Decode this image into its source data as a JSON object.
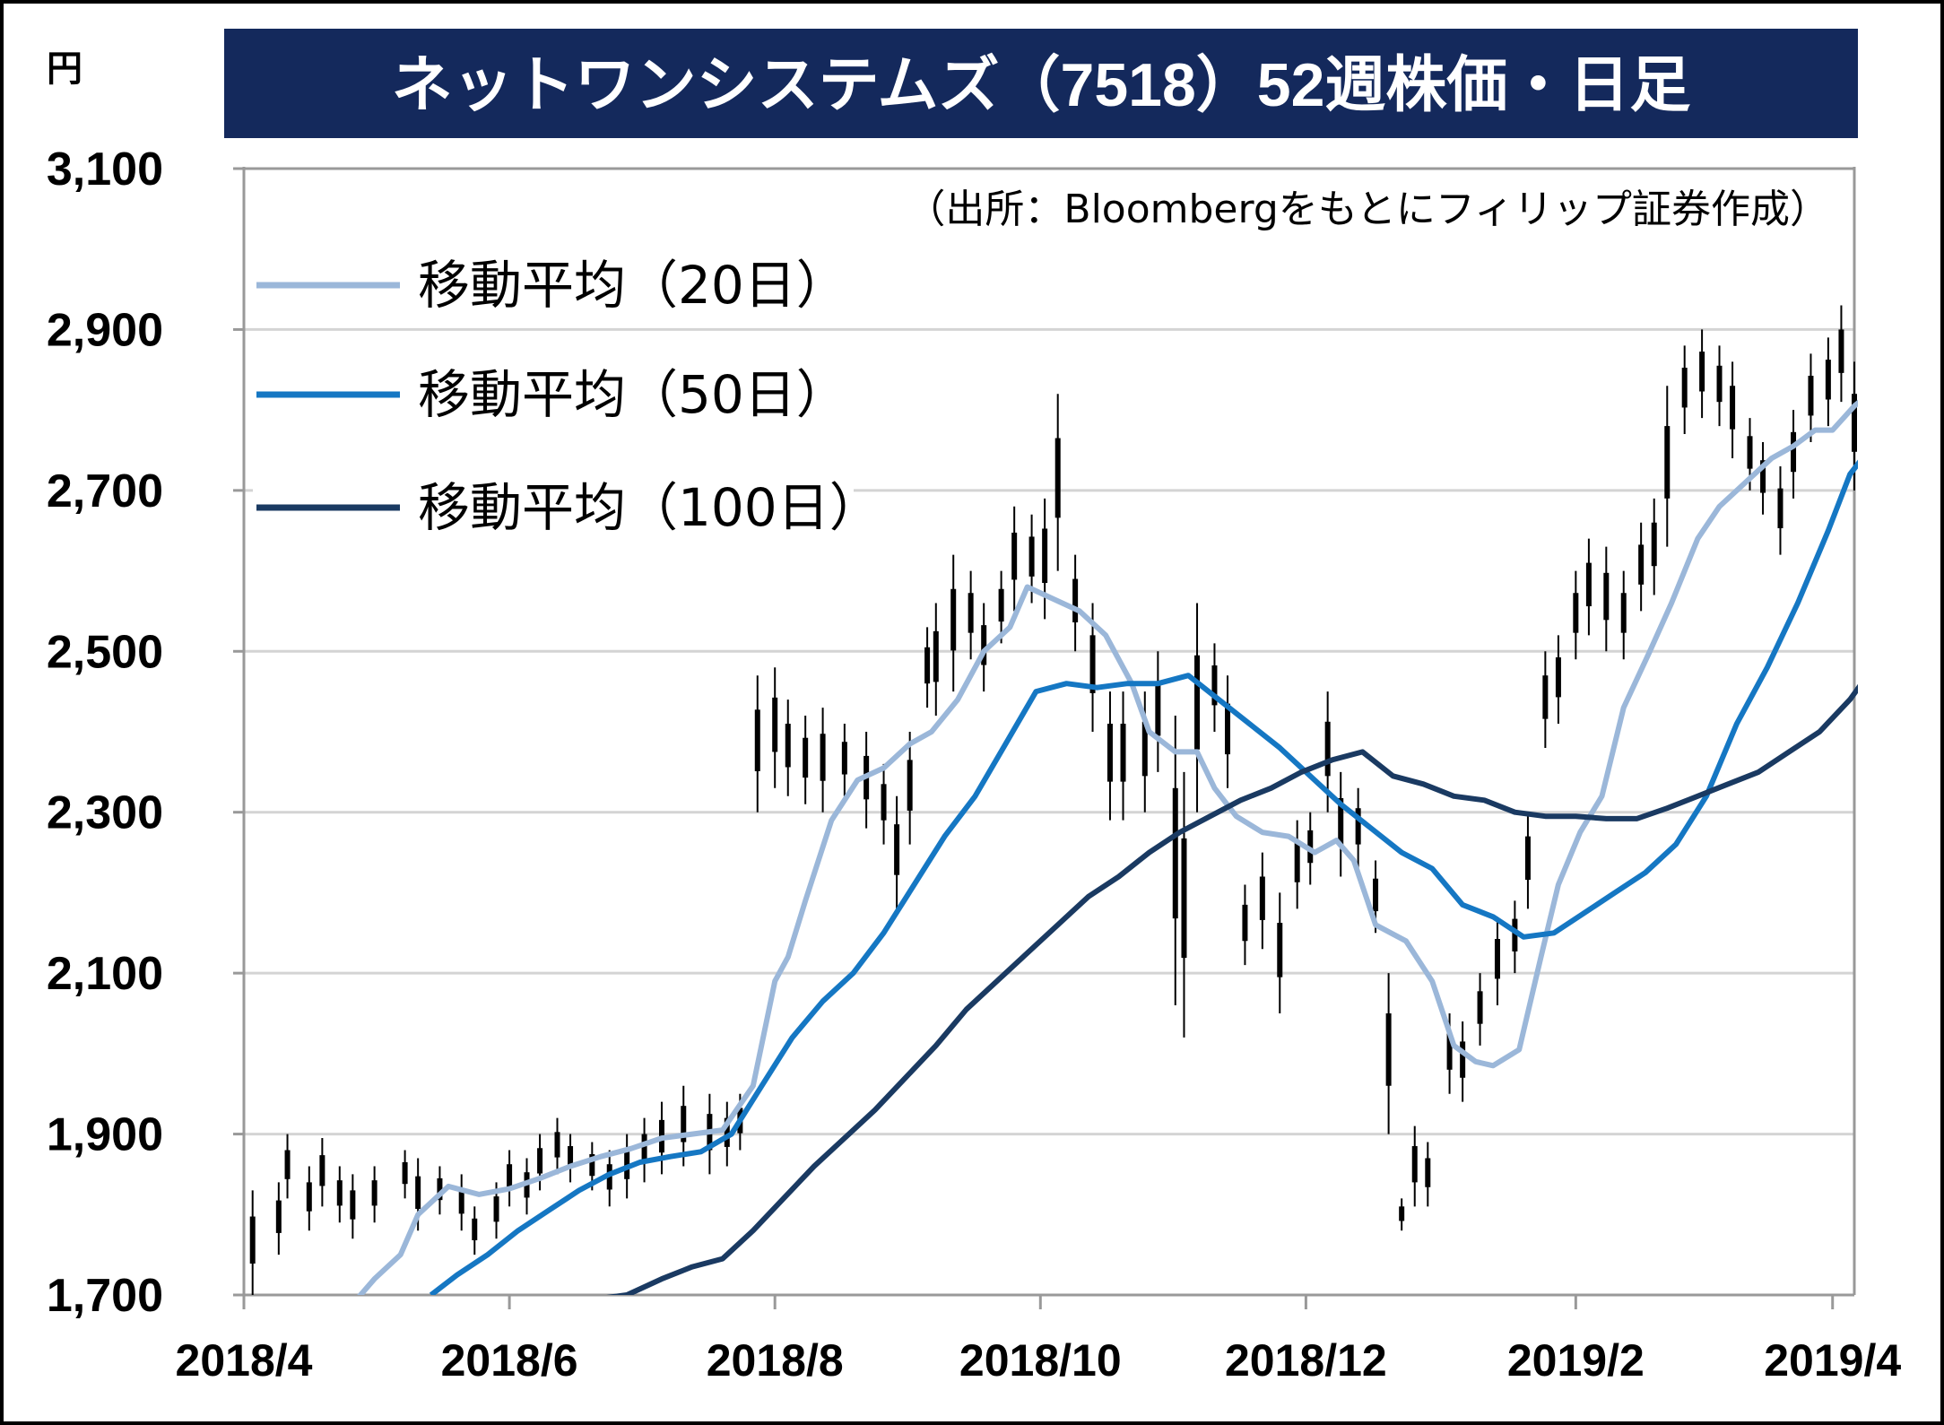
{
  "unit_label": "円",
  "title": "ネットワンシステムズ（7518）52週株価・日足",
  "source": "（出所：Bloombergをもとにフィリップ証券作成）",
  "colors": {
    "title_bg": "#14295c",
    "title_text": "#ffffff",
    "ma20": "#9bb7d9",
    "ma50": "#1577c3",
    "ma100": "#1a3a62",
    "candle": "#000000",
    "grid": "#d4d4d4"
  },
  "chart_data": {
    "type": "line",
    "title": "ネットワンシステムズ（7518）52週株価・日足",
    "ylabel": "円",
    "ylim": [
      1700,
      3100
    ],
    "yticks": [
      "1,700",
      "1,900",
      "2,100",
      "2,300",
      "2,500",
      "2,700",
      "2,900",
      "3,100"
    ],
    "ytick_values": [
      1700,
      1900,
      2100,
      2300,
      2500,
      2700,
      2900,
      3100
    ],
    "xticks": [
      "2018/4",
      "2018/6",
      "2018/8",
      "2018/10",
      "2018/12",
      "2019/2",
      "2019/4"
    ],
    "xtick_dates": [
      "2018-04-01",
      "2018-06-01",
      "2018-08-01",
      "2018-10-01",
      "2018-12-01",
      "2019-02-01",
      "2019-04-01"
    ],
    "x_range": [
      "2018-04-01",
      "2019-04-06"
    ],
    "grid": "horizontal",
    "legend_position": "top-left",
    "series": [
      {
        "name": "移動平均（20日）",
        "color": "#9bb7d9",
        "points": [
          [
            "2018-04-27",
            1695
          ],
          [
            "2018-05-01",
            1720
          ],
          [
            "2018-05-07",
            1750
          ],
          [
            "2018-05-11",
            1800
          ],
          [
            "2018-05-18",
            1835
          ],
          [
            "2018-05-25",
            1825
          ],
          [
            "2018-06-01",
            1832
          ],
          [
            "2018-06-08",
            1845
          ],
          [
            "2018-06-15",
            1860
          ],
          [
            "2018-06-22",
            1872
          ],
          [
            "2018-06-29",
            1882
          ],
          [
            "2018-07-06",
            1895
          ],
          [
            "2018-07-13",
            1900
          ],
          [
            "2018-07-20",
            1905
          ],
          [
            "2018-07-27",
            1960
          ],
          [
            "2018-08-01",
            2090
          ],
          [
            "2018-08-04",
            2120
          ],
          [
            "2018-08-08",
            2190
          ],
          [
            "2018-08-14",
            2290
          ],
          [
            "2018-08-20",
            2340
          ],
          [
            "2018-08-26",
            2355
          ],
          [
            "2018-09-01",
            2385
          ],
          [
            "2018-09-06",
            2400
          ],
          [
            "2018-09-12",
            2440
          ],
          [
            "2018-09-18",
            2500
          ],
          [
            "2018-09-24",
            2530
          ],
          [
            "2018-09-28",
            2580
          ],
          [
            "2018-10-04",
            2565
          ],
          [
            "2018-10-10",
            2550
          ],
          [
            "2018-10-16",
            2520
          ],
          [
            "2018-10-22",
            2460
          ],
          [
            "2018-10-26",
            2400
          ],
          [
            "2018-11-01",
            2375
          ],
          [
            "2018-11-06",
            2375
          ],
          [
            "2018-11-10",
            2330
          ],
          [
            "2018-11-15",
            2295
          ],
          [
            "2018-11-21",
            2275
          ],
          [
            "2018-11-27",
            2270
          ],
          [
            "2018-12-03",
            2250
          ],
          [
            "2018-12-08",
            2265
          ],
          [
            "2018-12-12",
            2240
          ],
          [
            "2018-12-17",
            2160
          ],
          [
            "2018-12-24",
            2140
          ],
          [
            "2018-12-30",
            2090
          ],
          [
            "2019-01-04",
            2010
          ],
          [
            "2019-01-09",
            1990
          ],
          [
            "2019-01-13",
            1985
          ],
          [
            "2019-01-19",
            2005
          ],
          [
            "2019-01-24",
            2120
          ],
          [
            "2019-01-28",
            2210
          ],
          [
            "2019-02-02",
            2275
          ],
          [
            "2019-02-07",
            2320
          ],
          [
            "2019-02-12",
            2430
          ],
          [
            "2019-02-18",
            2500
          ],
          [
            "2019-02-23",
            2560
          ],
          [
            "2019-03-01",
            2640
          ],
          [
            "2019-03-06",
            2680
          ],
          [
            "2019-03-12",
            2710
          ],
          [
            "2019-03-18",
            2740
          ],
          [
            "2019-03-23",
            2755
          ],
          [
            "2019-03-28",
            2775
          ],
          [
            "2019-04-01",
            2775
          ],
          [
            "2019-04-06",
            2805
          ],
          [
            "2019-04-09",
            2818
          ]
        ]
      },
      {
        "name": "移動平均（50日）",
        "color": "#1577c3",
        "points": [
          [
            "2018-05-14",
            1700
          ],
          [
            "2018-05-20",
            1725
          ],
          [
            "2018-05-27",
            1750
          ],
          [
            "2018-06-03",
            1780
          ],
          [
            "2018-06-10",
            1805
          ],
          [
            "2018-06-17",
            1830
          ],
          [
            "2018-06-24",
            1850
          ],
          [
            "2018-07-01",
            1865
          ],
          [
            "2018-07-08",
            1872
          ],
          [
            "2018-07-15",
            1878
          ],
          [
            "2018-07-22",
            1900
          ],
          [
            "2018-07-29",
            1960
          ],
          [
            "2018-08-05",
            2020
          ],
          [
            "2018-08-12",
            2065
          ],
          [
            "2018-08-19",
            2100
          ],
          [
            "2018-08-26",
            2150
          ],
          [
            "2018-09-02",
            2210
          ],
          [
            "2018-09-09",
            2270
          ],
          [
            "2018-09-16",
            2320
          ],
          [
            "2018-09-23",
            2385
          ],
          [
            "2018-09-30",
            2450
          ],
          [
            "2018-10-07",
            2460
          ],
          [
            "2018-10-14",
            2455
          ],
          [
            "2018-10-21",
            2460
          ],
          [
            "2018-10-28",
            2460
          ],
          [
            "2018-11-04",
            2470
          ],
          [
            "2018-11-11",
            2440
          ],
          [
            "2018-11-18",
            2410
          ],
          [
            "2018-11-25",
            2380
          ],
          [
            "2018-12-02",
            2345
          ],
          [
            "2018-12-09",
            2310
          ],
          [
            "2018-12-16",
            2280
          ],
          [
            "2018-12-23",
            2250
          ],
          [
            "2018-12-30",
            2230
          ],
          [
            "2019-01-06",
            2185
          ],
          [
            "2019-01-13",
            2170
          ],
          [
            "2019-01-20",
            2145
          ],
          [
            "2019-01-27",
            2150
          ],
          [
            "2019-02-03",
            2175
          ],
          [
            "2019-02-10",
            2200
          ],
          [
            "2019-02-17",
            2225
          ],
          [
            "2019-02-24",
            2260
          ],
          [
            "2019-03-03",
            2320
          ],
          [
            "2019-03-10",
            2410
          ],
          [
            "2019-03-17",
            2480
          ],
          [
            "2019-03-24",
            2560
          ],
          [
            "2019-03-31",
            2650
          ],
          [
            "2019-04-05",
            2720
          ],
          [
            "2019-04-09",
            2748
          ]
        ]
      },
      {
        "name": "移動平均（100日）",
        "color": "#1a3a62",
        "points": [
          [
            "2018-06-21",
            1695
          ],
          [
            "2018-06-28",
            1700
          ],
          [
            "2018-07-06",
            1720
          ],
          [
            "2018-07-13",
            1735
          ],
          [
            "2018-07-20",
            1745
          ],
          [
            "2018-07-27",
            1780
          ],
          [
            "2018-08-03",
            1820
          ],
          [
            "2018-08-10",
            1860
          ],
          [
            "2018-08-17",
            1895
          ],
          [
            "2018-08-24",
            1930
          ],
          [
            "2018-08-31",
            1970
          ],
          [
            "2018-09-07",
            2010
          ],
          [
            "2018-09-14",
            2055
          ],
          [
            "2018-09-21",
            2090
          ],
          [
            "2018-09-28",
            2125
          ],
          [
            "2018-10-05",
            2160
          ],
          [
            "2018-10-12",
            2195
          ],
          [
            "2018-10-19",
            2220
          ],
          [
            "2018-10-26",
            2250
          ],
          [
            "2018-11-02",
            2275
          ],
          [
            "2018-11-09",
            2295
          ],
          [
            "2018-11-16",
            2315
          ],
          [
            "2018-11-23",
            2330
          ],
          [
            "2018-11-30",
            2350
          ],
          [
            "2018-12-07",
            2365
          ],
          [
            "2018-12-14",
            2375
          ],
          [
            "2018-12-21",
            2345
          ],
          [
            "2018-12-28",
            2335
          ],
          [
            "2019-01-04",
            2320
          ],
          [
            "2019-01-11",
            2315
          ],
          [
            "2019-01-18",
            2300
          ],
          [
            "2019-01-25",
            2295
          ],
          [
            "2019-02-01",
            2295
          ],
          [
            "2019-02-08",
            2292
          ],
          [
            "2019-02-15",
            2292
          ],
          [
            "2019-02-22",
            2305
          ],
          [
            "2019-03-01",
            2320
          ],
          [
            "2019-03-08",
            2335
          ],
          [
            "2019-03-15",
            2350
          ],
          [
            "2019-03-22",
            2375
          ],
          [
            "2019-03-29",
            2400
          ],
          [
            "2019-04-05",
            2440
          ],
          [
            "2019-04-09",
            2470
          ]
        ]
      }
    ],
    "candles": [
      [
        "2018-04-03",
        1700,
        1830
      ],
      [
        "2018-04-09",
        1750,
        1840
      ],
      [
        "2018-04-11",
        1820,
        1900
      ],
      [
        "2018-04-16",
        1780,
        1860
      ],
      [
        "2018-04-19",
        1810,
        1895
      ],
      [
        "2018-04-23",
        1790,
        1860
      ],
      [
        "2018-04-26",
        1770,
        1850
      ],
      [
        "2018-05-01",
        1790,
        1860
      ],
      [
        "2018-05-08",
        1820,
        1880
      ],
      [
        "2018-05-11",
        1780,
        1870
      ],
      [
        "2018-05-16",
        1800,
        1860
      ],
      [
        "2018-05-21",
        1780,
        1850
      ],
      [
        "2018-05-24",
        1750,
        1810
      ],
      [
        "2018-05-29",
        1770,
        1840
      ],
      [
        "2018-06-01",
        1810,
        1880
      ],
      [
        "2018-06-05",
        1800,
        1870
      ],
      [
        "2018-06-08",
        1830,
        1900
      ],
      [
        "2018-06-12",
        1850,
        1920
      ],
      [
        "2018-06-15",
        1840,
        1900
      ],
      [
        "2018-06-20",
        1830,
        1890
      ],
      [
        "2018-06-24",
        1810,
        1880
      ],
      [
        "2018-06-28",
        1820,
        1900
      ],
      [
        "2018-07-02",
        1840,
        1920
      ],
      [
        "2018-07-06",
        1850,
        1940
      ],
      [
        "2018-07-11",
        1860,
        1960
      ],
      [
        "2018-07-17",
        1850,
        1950
      ],
      [
        "2018-07-21",
        1860,
        1940
      ],
      [
        "2018-07-24",
        1880,
        1950
      ],
      [
        "2018-07-28",
        2300,
        2470
      ],
      [
        "2018-08-01",
        2330,
        2480
      ],
      [
        "2018-08-04",
        2320,
        2440
      ],
      [
        "2018-08-08",
        2310,
        2420
      ],
      [
        "2018-08-12",
        2300,
        2430
      ],
      [
        "2018-08-17",
        2320,
        2410
      ],
      [
        "2018-08-22",
        2280,
        2400
      ],
      [
        "2018-08-26",
        2260,
        2360
      ],
      [
        "2018-08-29",
        2180,
        2320
      ],
      [
        "2018-09-01",
        2260,
        2400
      ],
      [
        "2018-09-05",
        2430,
        2530
      ],
      [
        "2018-09-07",
        2420,
        2560
      ],
      [
        "2018-09-11",
        2450,
        2620
      ],
      [
        "2018-09-15",
        2490,
        2600
      ],
      [
        "2018-09-18",
        2450,
        2560
      ],
      [
        "2018-09-22",
        2510,
        2600
      ],
      [
        "2018-09-25",
        2550,
        2680
      ],
      [
        "2018-09-29",
        2560,
        2670
      ],
      [
        "2018-10-02",
        2540,
        2690
      ],
      [
        "2018-10-05",
        2600,
        2820
      ],
      [
        "2018-10-09",
        2500,
        2620
      ],
      [
        "2018-10-13",
        2400,
        2560
      ],
      [
        "2018-10-17",
        2290,
        2450
      ],
      [
        "2018-10-20",
        2290,
        2450
      ],
      [
        "2018-10-25",
        2300,
        2450
      ],
      [
        "2018-10-28",
        2350,
        2500
      ],
      [
        "2018-11-01",
        2060,
        2420
      ],
      [
        "2018-11-03",
        2020,
        2350
      ],
      [
        "2018-11-06",
        2300,
        2560
      ],
      [
        "2018-11-10",
        2400,
        2510
      ],
      [
        "2018-11-13",
        2330,
        2470
      ],
      [
        "2018-11-17",
        2110,
        2210
      ],
      [
        "2018-11-21",
        2130,
        2250
      ],
      [
        "2018-11-25",
        2050,
        2200
      ],
      [
        "2018-11-29",
        2180,
        2290
      ],
      [
        "2018-12-02",
        2210,
        2300
      ],
      [
        "2018-12-06",
        2300,
        2450
      ],
      [
        "2018-12-09",
        2220,
        2350
      ],
      [
        "2018-12-13",
        2230,
        2330
      ],
      [
        "2018-12-17",
        2150,
        2240
      ],
      [
        "2018-12-20",
        1900,
        2100
      ],
      [
        "2018-12-23",
        1780,
        1820
      ],
      [
        "2018-12-26",
        1810,
        1910
      ],
      [
        "2018-12-29",
        1810,
        1890
      ],
      [
        "2019-01-03",
        1950,
        2050
      ],
      [
        "2019-01-06",
        1940,
        2040
      ],
      [
        "2019-01-10",
        2010,
        2100
      ],
      [
        "2019-01-14",
        2060,
        2170
      ],
      [
        "2019-01-18",
        2100,
        2190
      ],
      [
        "2019-01-21",
        2180,
        2300
      ],
      [
        "2019-01-25",
        2380,
        2500
      ],
      [
        "2019-01-28",
        2410,
        2520
      ],
      [
        "2019-02-01",
        2490,
        2600
      ],
      [
        "2019-02-04",
        2520,
        2640
      ],
      [
        "2019-02-08",
        2500,
        2630
      ],
      [
        "2019-02-12",
        2490,
        2600
      ],
      [
        "2019-02-16",
        2550,
        2660
      ],
      [
        "2019-02-19",
        2570,
        2690
      ],
      [
        "2019-02-22",
        2630,
        2830
      ],
      [
        "2019-02-26",
        2770,
        2880
      ],
      [
        "2019-03-02",
        2790,
        2900
      ],
      [
        "2019-03-06",
        2780,
        2880
      ],
      [
        "2019-03-09",
        2740,
        2860
      ],
      [
        "2019-03-13",
        2700,
        2790
      ],
      [
        "2019-03-16",
        2670,
        2760
      ],
      [
        "2019-03-20",
        2620,
        2730
      ],
      [
        "2019-03-23",
        2690,
        2800
      ],
      [
        "2019-03-27",
        2760,
        2870
      ],
      [
        "2019-03-31",
        2780,
        2890
      ],
      [
        "2019-04-03",
        2810,
        2930
      ],
      [
        "2019-04-06",
        2700,
        2860
      ],
      [
        "2019-04-09",
        2740,
        2920
      ]
    ]
  }
}
